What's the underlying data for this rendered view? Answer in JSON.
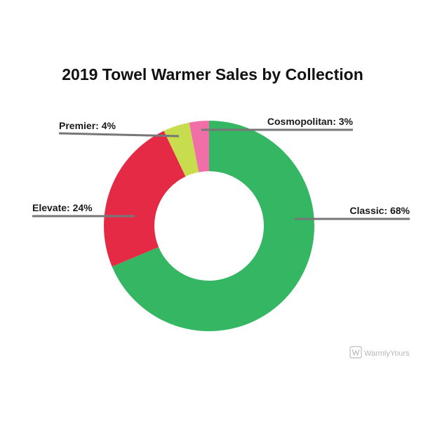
{
  "chart_data": {
    "type": "pie",
    "title": "2019 Towel Warmer Sales by Collection",
    "donut": true,
    "slices": [
      {
        "label": "Classic",
        "value": 68,
        "text": "Classic: 68%",
        "color": "#34b662"
      },
      {
        "label": "Elevate",
        "value": 24,
        "text": "Elevate: 24%",
        "color": "#e42a45"
      },
      {
        "label": "Premier",
        "value": 4,
        "text": "Premier: 4%",
        "color": "#c8dd4d"
      },
      {
        "label": "Cosmopolitan",
        "value": 3,
        "text": "Cosmopolitan: 3%",
        "color": "#ef6fa6"
      }
    ]
  },
  "branding": {
    "logo_icon": "warmlyyours-logo-icon",
    "text": "WarmlyYours"
  }
}
